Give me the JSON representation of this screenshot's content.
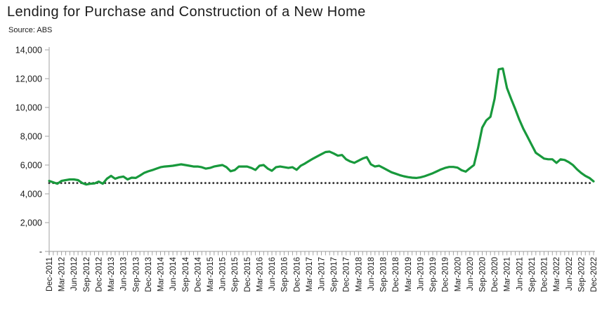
{
  "title": "Lending for Purchase and Construction of a New Home",
  "source": "Source: ABS",
  "colors": {
    "line": "#18993C",
    "reference_dots": "#3b3b3b",
    "axis": "#b0b0b0",
    "tick": "#999999",
    "text": "#1a1a1a"
  },
  "chart_data": {
    "type": "line",
    "title": "Lending for Purchase and Construction of a New Home",
    "subtitle": "Source: ABS",
    "xlabel": "",
    "ylabel": "",
    "ylim": [
      0,
      14000
    ],
    "grid": false,
    "legend": "none",
    "frequency": "monthly",
    "x_start": "Dec-2011",
    "x_end": "Dec-2022",
    "y_axis": {
      "ticks_top_to_bottom": [
        "14,000",
        "12,000",
        "10,000",
        "8,000",
        "6,000",
        "4,000",
        "2,000",
        "-"
      ]
    },
    "x_axis": {
      "minor_ticks": "every month",
      "tick_labels": [
        "Dec-2011",
        "Mar-2012",
        "Jun-2012",
        "Sep-2012",
        "Dec-2012",
        "Mar-2013",
        "Jun-2013",
        "Sep-2013",
        "Dec-2013",
        "Mar-2014",
        "Jun-2014",
        "Sep-2014",
        "Dec-2014",
        "Mar-2015",
        "Jun-2015",
        "Sep-2015",
        "Dec-2015",
        "Mar-2016",
        "Jun-2016",
        "Sep-2016",
        "Dec-2016",
        "Mar-2017",
        "Jun-2017",
        "Sep-2017",
        "Dec-2017",
        "Mar-2018",
        "Jun-2018",
        "Sep-2018",
        "Dec-2018",
        "Mar-2019",
        "Jun-2019",
        "Sep-2019",
        "Dec-2019",
        "Mar-2020",
        "Jun-2020",
        "Sep-2020",
        "Dec-2020",
        "Mar-2021",
        "Jun-2021",
        "Sep-2021",
        "Dec-2021",
        "Mar-2022",
        "Jun-2022",
        "Sep-2022",
        "Dec-2022"
      ]
    },
    "reference_line": {
      "style": "dotted",
      "value": 4750
    },
    "series": [
      {
        "name": "Lending for purchase and construction of a new home",
        "color": "#18993C",
        "values": [
          4900,
          4800,
          4700,
          4900,
          4950,
          5000,
          5000,
          4950,
          4750,
          4650,
          4700,
          4720,
          4850,
          4700,
          5050,
          5250,
          5050,
          5150,
          5200,
          5000,
          5120,
          5100,
          5270,
          5450,
          5560,
          5650,
          5750,
          5850,
          5900,
          5920,
          5950,
          6000,
          6050,
          6000,
          5950,
          5900,
          5900,
          5850,
          5750,
          5800,
          5900,
          5950,
          6000,
          5850,
          5570,
          5650,
          5900,
          5900,
          5900,
          5800,
          5660,
          5950,
          6000,
          5750,
          5600,
          5850,
          5900,
          5850,
          5800,
          5850,
          5670,
          5950,
          6100,
          6280,
          6450,
          6600,
          6750,
          6900,
          6930,
          6800,
          6650,
          6700,
          6400,
          6250,
          6150,
          6300,
          6450,
          6550,
          6050,
          5900,
          5950,
          5800,
          5650,
          5500,
          5400,
          5300,
          5220,
          5160,
          5120,
          5100,
          5140,
          5220,
          5320,
          5430,
          5560,
          5700,
          5800,
          5870,
          5870,
          5820,
          5640,
          5540,
          5780,
          6000,
          7200,
          8600,
          9100,
          9350,
          10600,
          12650,
          12700,
          11350,
          10600,
          9900,
          9150,
          8500,
          7950,
          7400,
          6850,
          6650,
          6450,
          6400,
          6400,
          6150,
          6400,
          6350,
          6200,
          6000,
          5700,
          5450,
          5250,
          5100,
          4870
        ]
      }
    ]
  }
}
